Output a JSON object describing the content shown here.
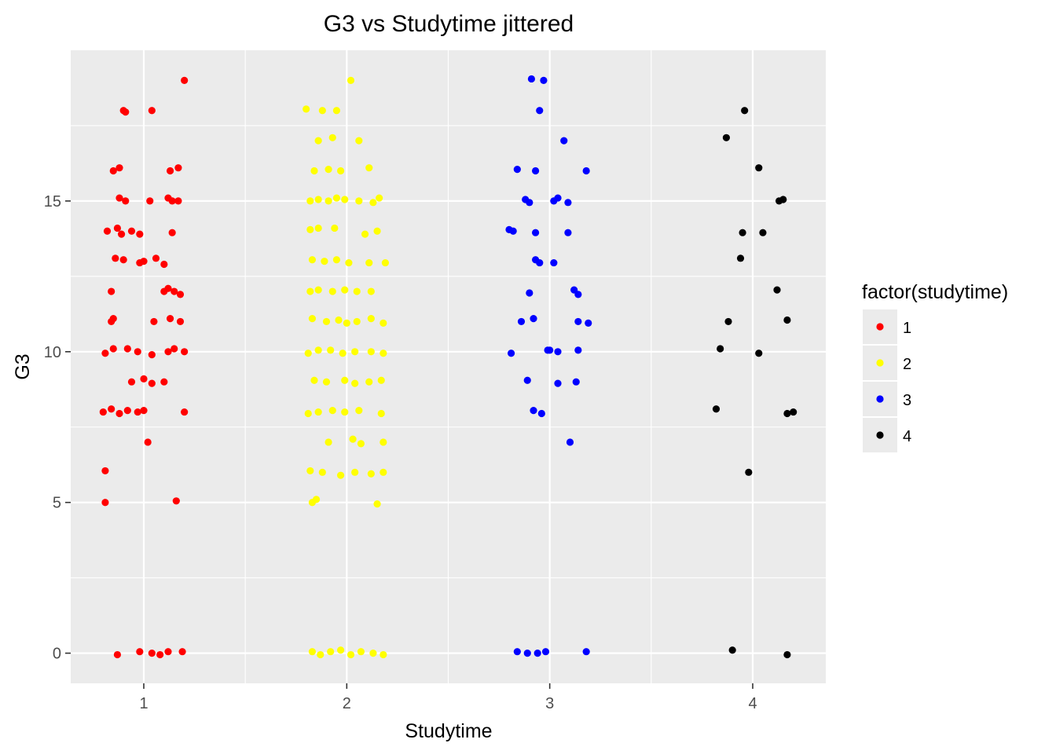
{
  "chart_data": {
    "type": "scatter",
    "title": "G3 vs Studytime jittered",
    "xlabel": "Studytime",
    "ylabel": "G3",
    "xlim": [
      0.64,
      4.36
    ],
    "ylim": [
      -1.0,
      20.0
    ],
    "x_ticks": [
      1,
      2,
      3,
      4
    ],
    "y_ticks": [
      0,
      5,
      10,
      15
    ],
    "grid": true,
    "legend": {
      "title": "factor(studytime)",
      "placement": "right",
      "entries": [
        "1",
        "2",
        "3",
        "4"
      ]
    },
    "series": [
      {
        "name": "1",
        "color": "#ff0000",
        "points": [
          [
            1.2,
            19.0
          ],
          [
            0.9,
            18.0
          ],
          [
            0.91,
            17.95
          ],
          [
            1.04,
            18.0
          ],
          [
            0.85,
            16.0
          ],
          [
            0.88,
            16.1
          ],
          [
            1.13,
            16.0
          ],
          [
            1.17,
            16.1
          ],
          [
            0.88,
            15.1
          ],
          [
            0.91,
            15.0
          ],
          [
            1.03,
            15.0
          ],
          [
            1.12,
            15.1
          ],
          [
            1.14,
            15.0
          ],
          [
            1.17,
            15.0
          ],
          [
            0.82,
            14.0
          ],
          [
            0.87,
            14.1
          ],
          [
            0.89,
            13.9
          ],
          [
            0.94,
            14.0
          ],
          [
            0.98,
            13.9
          ],
          [
            1.14,
            13.95
          ],
          [
            0.86,
            13.1
          ],
          [
            0.9,
            13.05
          ],
          [
            0.98,
            12.95
          ],
          [
            1.0,
            13.0
          ],
          [
            1.06,
            13.1
          ],
          [
            1.1,
            12.9
          ],
          [
            0.84,
            12.0
          ],
          [
            1.1,
            12.0
          ],
          [
            1.12,
            12.1
          ],
          [
            1.15,
            12.0
          ],
          [
            1.18,
            11.9
          ],
          [
            0.84,
            11.0
          ],
          [
            0.85,
            11.1
          ],
          [
            1.05,
            11.0
          ],
          [
            1.13,
            11.1
          ],
          [
            1.18,
            11.0
          ],
          [
            0.81,
            9.95
          ],
          [
            0.85,
            10.1
          ],
          [
            0.92,
            10.1
          ],
          [
            0.97,
            10.0
          ],
          [
            1.04,
            9.9
          ],
          [
            1.12,
            10.0
          ],
          [
            1.15,
            10.1
          ],
          [
            1.2,
            10.0
          ],
          [
            0.94,
            9.0
          ],
          [
            1.0,
            9.1
          ],
          [
            1.04,
            8.95
          ],
          [
            1.1,
            9.0
          ],
          [
            0.8,
            8.0
          ],
          [
            0.84,
            8.1
          ],
          [
            0.88,
            7.95
          ],
          [
            0.92,
            8.05
          ],
          [
            0.97,
            8.0
          ],
          [
            1.0,
            8.05
          ],
          [
            1.2,
            8.0
          ],
          [
            1.02,
            7.0
          ],
          [
            0.81,
            6.05
          ],
          [
            0.81,
            5.0
          ],
          [
            1.16,
            5.05
          ],
          [
            0.87,
            -0.05
          ],
          [
            0.98,
            0.05
          ],
          [
            1.04,
            0.0
          ],
          [
            1.08,
            -0.05
          ],
          [
            1.12,
            0.05
          ],
          [
            1.19,
            0.05
          ]
        ]
      },
      {
        "name": "2",
        "color": "#ffff00",
        "points": [
          [
            2.02,
            19.0
          ],
          [
            1.8,
            18.05
          ],
          [
            1.88,
            18.0
          ],
          [
            1.95,
            18.0
          ],
          [
            1.86,
            17.0
          ],
          [
            1.93,
            17.1
          ],
          [
            2.06,
            17.0
          ],
          [
            1.84,
            16.0
          ],
          [
            1.91,
            16.05
          ],
          [
            1.97,
            16.0
          ],
          [
            2.11,
            16.1
          ],
          [
            1.82,
            15.0
          ],
          [
            1.86,
            15.05
          ],
          [
            1.91,
            15.0
          ],
          [
            1.95,
            15.1
          ],
          [
            1.99,
            15.05
          ],
          [
            2.06,
            15.0
          ],
          [
            2.13,
            14.95
          ],
          [
            2.16,
            15.1
          ],
          [
            1.82,
            14.05
          ],
          [
            1.86,
            14.1
          ],
          [
            1.94,
            14.1
          ],
          [
            2.09,
            13.9
          ],
          [
            2.15,
            14.0
          ],
          [
            1.83,
            13.05
          ],
          [
            1.89,
            13.0
          ],
          [
            1.95,
            13.05
          ],
          [
            2.01,
            12.95
          ],
          [
            2.11,
            12.95
          ],
          [
            2.19,
            12.95
          ],
          [
            1.82,
            12.0
          ],
          [
            1.86,
            12.05
          ],
          [
            1.93,
            12.0
          ],
          [
            1.99,
            12.05
          ],
          [
            2.05,
            12.0
          ],
          [
            2.12,
            12.0
          ],
          [
            1.83,
            11.1
          ],
          [
            1.9,
            11.0
          ],
          [
            1.96,
            11.05
          ],
          [
            2.0,
            10.95
          ],
          [
            2.05,
            11.0
          ],
          [
            2.12,
            11.1
          ],
          [
            2.18,
            10.95
          ],
          [
            1.81,
            9.95
          ],
          [
            1.86,
            10.05
          ],
          [
            1.92,
            10.05
          ],
          [
            1.98,
            9.95
          ],
          [
            2.04,
            10.0
          ],
          [
            2.12,
            10.0
          ],
          [
            2.18,
            9.95
          ],
          [
            1.84,
            9.05
          ],
          [
            1.9,
            9.0
          ],
          [
            1.99,
            9.05
          ],
          [
            2.04,
            8.95
          ],
          [
            2.11,
            9.0
          ],
          [
            2.17,
            9.05
          ],
          [
            1.81,
            7.95
          ],
          [
            1.86,
            8.0
          ],
          [
            1.93,
            8.05
          ],
          [
            1.99,
            8.0
          ],
          [
            2.06,
            8.05
          ],
          [
            2.17,
            7.95
          ],
          [
            1.91,
            7.0
          ],
          [
            2.03,
            7.1
          ],
          [
            2.07,
            6.95
          ],
          [
            2.18,
            7.0
          ],
          [
            1.82,
            6.05
          ],
          [
            1.88,
            6.0
          ],
          [
            1.97,
            5.9
          ],
          [
            2.04,
            6.0
          ],
          [
            2.12,
            5.95
          ],
          [
            2.18,
            6.0
          ],
          [
            1.83,
            5.0
          ],
          [
            1.85,
            5.1
          ],
          [
            2.15,
            4.95
          ],
          [
            1.83,
            0.05
          ],
          [
            1.87,
            -0.05
          ],
          [
            1.92,
            0.05
          ],
          [
            1.97,
            0.1
          ],
          [
            2.02,
            -0.05
          ],
          [
            2.07,
            0.05
          ],
          [
            2.13,
            0.0
          ],
          [
            2.18,
            -0.05
          ]
        ]
      },
      {
        "name": "3",
        "color": "#0000ff",
        "points": [
          [
            2.91,
            19.05
          ],
          [
            2.97,
            19.0
          ],
          [
            2.95,
            18.0
          ],
          [
            3.07,
            17.0
          ],
          [
            2.84,
            16.05
          ],
          [
            2.93,
            16.0
          ],
          [
            3.18,
            16.0
          ],
          [
            2.88,
            15.05
          ],
          [
            2.9,
            14.95
          ],
          [
            3.02,
            15.0
          ],
          [
            3.04,
            15.1
          ],
          [
            3.09,
            14.95
          ],
          [
            2.8,
            14.05
          ],
          [
            2.82,
            14.0
          ],
          [
            2.93,
            13.95
          ],
          [
            3.09,
            13.95
          ],
          [
            2.93,
            13.05
          ],
          [
            2.95,
            12.95
          ],
          [
            3.02,
            12.95
          ],
          [
            2.9,
            11.95
          ],
          [
            3.12,
            12.05
          ],
          [
            3.14,
            11.9
          ],
          [
            2.86,
            11.0
          ],
          [
            2.92,
            11.1
          ],
          [
            3.14,
            11.0
          ],
          [
            3.19,
            10.95
          ],
          [
            2.81,
            9.95
          ],
          [
            2.99,
            10.05
          ],
          [
            3.0,
            10.05
          ],
          [
            3.04,
            10.0
          ],
          [
            3.14,
            10.05
          ],
          [
            2.89,
            9.05
          ],
          [
            3.04,
            8.95
          ],
          [
            3.13,
            9.0
          ],
          [
            2.92,
            8.05
          ],
          [
            2.96,
            7.95
          ],
          [
            3.1,
            7.0
          ],
          [
            2.84,
            0.05
          ],
          [
            2.89,
            0.0
          ],
          [
            2.94,
            0.0
          ],
          [
            2.98,
            0.05
          ],
          [
            3.18,
            0.05
          ]
        ]
      },
      {
        "name": "4",
        "color": "#000000",
        "points": [
          [
            3.96,
            18.0
          ],
          [
            3.87,
            17.1
          ],
          [
            4.03,
            16.1
          ],
          [
            4.13,
            15.0
          ],
          [
            4.15,
            15.05
          ],
          [
            3.95,
            13.95
          ],
          [
            4.05,
            13.95
          ],
          [
            3.94,
            13.1
          ],
          [
            4.12,
            12.05
          ],
          [
            3.88,
            11.0
          ],
          [
            4.17,
            11.05
          ],
          [
            3.84,
            10.1
          ],
          [
            4.03,
            9.95
          ],
          [
            3.82,
            8.1
          ],
          [
            4.17,
            7.95
          ],
          [
            4.2,
            8.0
          ],
          [
            3.98,
            6.0
          ],
          [
            3.9,
            0.1
          ],
          [
            4.17,
            -0.05
          ]
        ]
      }
    ]
  }
}
